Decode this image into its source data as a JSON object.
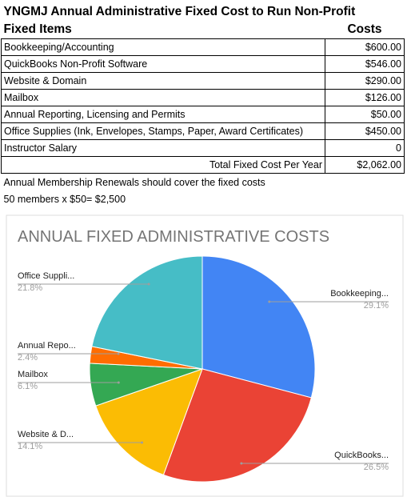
{
  "table": {
    "title": "YNGMJ Annual Administrative Fixed Cost to Run Non-Profit",
    "header": [
      "Fixed Items",
      "Costs"
    ],
    "rows": [
      [
        "Bookkeeping/Accounting",
        "$600.00"
      ],
      [
        "QuickBooks Non-Profit Software",
        "$546.00"
      ],
      [
        "Website & Domain",
        "$290.00"
      ],
      [
        "Mailbox",
        "$126.00"
      ],
      [
        "Annual Reporting, Licensing and Permits",
        "$50.00"
      ],
      [
        "Office Supplies (Ink, Envelopes, Stamps, Paper, Award Certificates)",
        "$450.00"
      ],
      [
        "Instructor Salary",
        "0"
      ]
    ],
    "total": [
      "Total Fixed Cost Per Year",
      "$2,062.00"
    ],
    "notes": [
      "Annual Membership Renewals should cover the fixed costs",
      "50 members x $50= $2,500"
    ]
  },
  "chart_data": {
    "type": "pie",
    "title": "ANNUAL FIXED ADMINISTRATIVE COSTS",
    "categories": [
      "Bookkeeping...",
      "QuickBooks...",
      "Website & D...",
      "Mailbox",
      "Annual Repo...",
      "Office Suppli..."
    ],
    "values": [
      29.1,
      26.5,
      14.1,
      6.1,
      2.4,
      21.8
    ],
    "value_labels": [
      "29.1%",
      "26.5%",
      "14.1%",
      "6.1%",
      "2.4%",
      "21.8%"
    ],
    "colors": [
      "#4285f4",
      "#ea4335",
      "#fbbc04",
      "#34a853",
      "#ff6d01",
      "#46bdc6"
    ]
  }
}
